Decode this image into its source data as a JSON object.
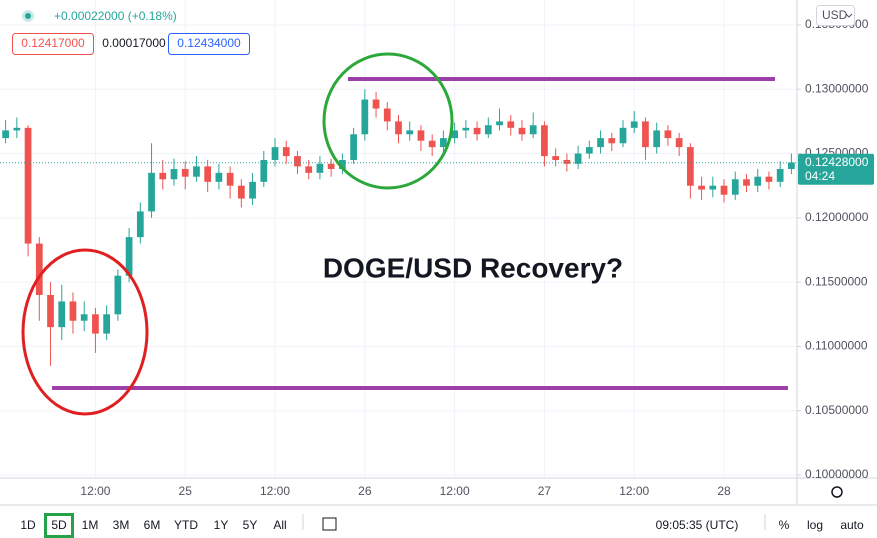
{
  "header": {
    "change": "+0.00022000 (+0.18%)",
    "bid": "0.12417000",
    "spread": "0.00017000",
    "ask": "0.12434000",
    "currency": "USD"
  },
  "chart_data": {
    "type": "candlestick",
    "annotation": "DOGE/USD Recovery?",
    "categories": [
      null,
      null,
      null,
      null,
      null,
      null,
      null,
      null,
      "12:00",
      null,
      null,
      null,
      null,
      null,
      null,
      null,
      "25",
      null,
      null,
      null,
      null,
      null,
      null,
      null,
      "12:00",
      null,
      null,
      null,
      null,
      null,
      null,
      null,
      "26",
      null,
      null,
      null,
      null,
      null,
      null,
      null,
      "12:00",
      null,
      null,
      null,
      null,
      null,
      null,
      null,
      "27",
      null,
      null,
      null,
      null,
      null,
      null,
      null,
      "12:00",
      null,
      null,
      null,
      null,
      null,
      null,
      null,
      "28",
      null,
      null,
      null,
      null,
      null,
      null
    ],
    "open": [
      0.1262,
      0.1268,
      0.127,
      0.118,
      0.114,
      0.1115,
      0.1135,
      0.112,
      0.1125,
      0.111,
      0.1125,
      0.1155,
      0.1185,
      0.1205,
      0.1235,
      0.123,
      0.1238,
      0.1232,
      0.124,
      0.1228,
      0.1235,
      0.1225,
      0.1215,
      0.1228,
      0.1245,
      0.1255,
      0.1248,
      0.124,
      0.1235,
      0.1242,
      0.1238,
      0.1245,
      0.1265,
      0.1292,
      0.1285,
      0.1275,
      0.1265,
      0.1268,
      0.126,
      0.1255,
      0.1262,
      0.1268,
      0.127,
      0.1265,
      0.1272,
      0.1275,
      0.127,
      0.1265,
      0.1272,
      0.1248,
      0.1245,
      0.1242,
      0.125,
      0.1255,
      0.1262,
      0.1258,
      0.127,
      0.1275,
      0.1255,
      0.1268,
      0.1262,
      0.1255,
      0.1225,
      0.1222,
      0.1225,
      0.1218,
      0.123,
      0.1225,
      0.1232,
      0.1228,
      0.1238
    ],
    "high": [
      0.1276,
      0.1278,
      0.1272,
      0.1185,
      0.115,
      0.1148,
      0.1142,
      0.1135,
      0.113,
      0.1132,
      0.116,
      0.1192,
      0.1212,
      0.1258,
      0.1245,
      0.1246,
      0.1244,
      0.1248,
      0.1245,
      0.1242,
      0.124,
      0.123,
      0.1235,
      0.1252,
      0.1262,
      0.126,
      0.1252,
      0.1245,
      0.1248,
      0.1246,
      0.125,
      0.127,
      0.13,
      0.1298,
      0.129,
      0.128,
      0.1275,
      0.1272,
      0.1265,
      0.1268,
      0.1274,
      0.1276,
      0.1275,
      0.1278,
      0.1285,
      0.128,
      0.1276,
      0.1282,
      0.1275,
      0.1254,
      0.125,
      0.1256,
      0.126,
      0.1268,
      0.1266,
      0.1276,
      0.1283,
      0.1278,
      0.1274,
      0.1272,
      0.1266,
      0.1258,
      0.1232,
      0.1232,
      0.123,
      0.1236,
      0.1234,
      0.1238,
      0.1236,
      0.1244,
      0.125
    ],
    "low": [
      0.1258,
      0.1262,
      0.117,
      0.112,
      0.1085,
      0.1105,
      0.111,
      0.1112,
      0.1095,
      0.1105,
      0.112,
      0.115,
      0.118,
      0.12,
      0.1222,
      0.1225,
      0.1222,
      0.1228,
      0.122,
      0.1222,
      0.1215,
      0.1208,
      0.121,
      0.1224,
      0.124,
      0.1242,
      0.1234,
      0.123,
      0.123,
      0.1232,
      0.1234,
      0.1242,
      0.126,
      0.1278,
      0.1268,
      0.1258,
      0.126,
      0.1252,
      0.1248,
      0.125,
      0.1258,
      0.1262,
      0.126,
      0.1262,
      0.1268,
      0.1264,
      0.126,
      0.1262,
      0.124,
      0.124,
      0.1236,
      0.1238,
      0.1246,
      0.125,
      0.1252,
      0.1255,
      0.1266,
      0.1245,
      0.125,
      0.1256,
      0.1248,
      0.1215,
      0.1214,
      0.1216,
      0.1212,
      0.1214,
      0.122,
      0.122,
      0.1222,
      0.1224,
      0.1234
    ],
    "close": [
      0.1268,
      0.127,
      0.118,
      0.114,
      0.1115,
      0.1135,
      0.112,
      0.1125,
      0.111,
      0.1125,
      0.1155,
      0.1185,
      0.1205,
      0.1235,
      0.123,
      0.1238,
      0.1232,
      0.124,
      0.1228,
      0.1235,
      0.1225,
      0.1215,
      0.1228,
      0.1245,
      0.1255,
      0.1248,
      0.124,
      0.1235,
      0.1242,
      0.1238,
      0.1245,
      0.1265,
      0.1292,
      0.1285,
      0.1275,
      0.1265,
      0.1268,
      0.126,
      0.1255,
      0.1262,
      0.1268,
      0.127,
      0.1265,
      0.1272,
      0.1275,
      0.127,
      0.1265,
      0.1272,
      0.1248,
      0.1245,
      0.1242,
      0.125,
      0.1255,
      0.1262,
      0.1258,
      0.127,
      0.1275,
      0.1255,
      0.1268,
      0.1262,
      0.1255,
      0.1225,
      0.1222,
      0.1225,
      0.1218,
      0.123,
      0.1225,
      0.1232,
      0.1228,
      0.1238,
      0.1243
    ],
    "up_color": "#26a69a",
    "down_color": "#ef5350",
    "ylim": [
      0.09977,
      0.13694
    ],
    "yticks": [
      {
        "value": 0.1,
        "label": "0.10000000"
      },
      {
        "value": 0.105,
        "label": "0.10500000"
      },
      {
        "value": 0.11,
        "label": "0.11000000"
      },
      {
        "value": 0.115,
        "label": "0.11500000"
      },
      {
        "value": 0.12,
        "label": "0.12000000"
      },
      {
        "value": 0.125,
        "label": "0.12500000"
      },
      {
        "value": 0.13,
        "label": "0.13000000"
      },
      {
        "value": 0.135,
        "label": "0.13500000"
      }
    ],
    "grid": true,
    "last_price": {
      "value": 0.12428,
      "label": "0.12428000"
    },
    "countdown": "04:24"
  },
  "toolbar": {
    "ranges": [
      "1D",
      "5D",
      "1M",
      "3M",
      "6M",
      "YTD",
      "1Y",
      "5Y",
      "All"
    ],
    "clock": "09:05:35 (UTC)",
    "percent": "%",
    "log": "log",
    "auto": "auto"
  }
}
